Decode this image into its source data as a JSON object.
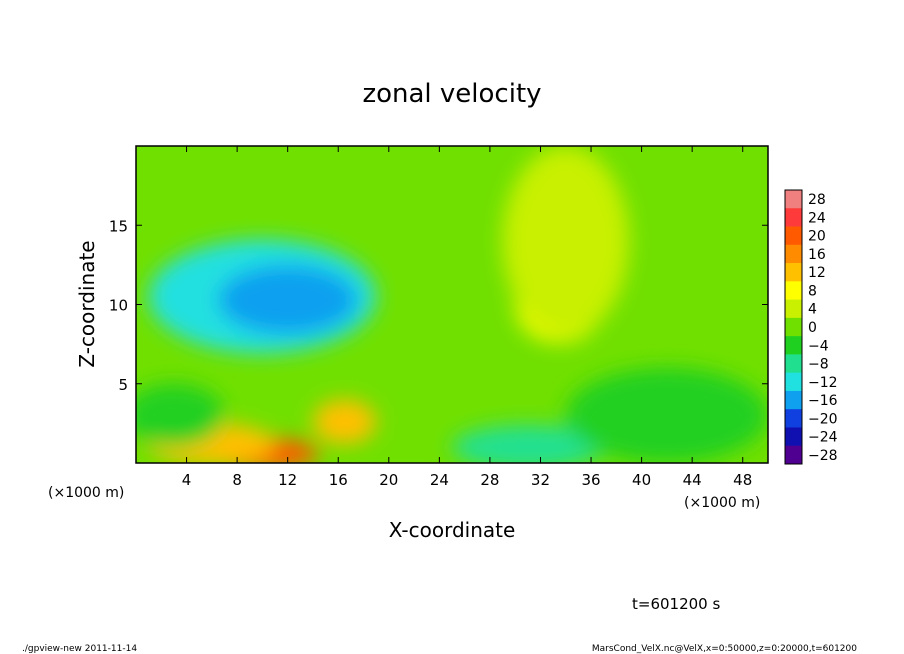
{
  "chart_data": {
    "type": "heatmap",
    "title": "zonal velocity",
    "xlabel": "X-coordinate",
    "ylabel": "Z-coordinate",
    "x_unit_left": "(×1000 m)",
    "x_unit_right": "(×1000 m)",
    "xlim": [
      0,
      50
    ],
    "ylim": [
      0,
      20
    ],
    "x_ticks": [
      4,
      8,
      12,
      16,
      20,
      24,
      28,
      32,
      36,
      40,
      44,
      48
    ],
    "x_tick_labels": [
      "4",
      "8",
      "12",
      "16",
      "20",
      "24",
      "28",
      "32",
      "36",
      "40",
      "44",
      "48"
    ],
    "y_ticks": [
      5,
      10,
      15
    ],
    "y_tick_labels": [
      "5",
      "10",
      "15"
    ],
    "colorbar": {
      "levels": [
        28,
        24,
        20,
        16,
        12,
        8,
        4,
        0,
        -4,
        -8,
        -12,
        -16,
        -20,
        -24,
        -28
      ],
      "labels": [
        "28",
        "24",
        "20",
        "16",
        "12",
        "8",
        "4",
        "0",
        "−4",
        "−8",
        "−12",
        "−16",
        "−20",
        "−24",
        "−28"
      ],
      "colors": [
        "#f08080",
        "#ff3a3a",
        "#ff5a00",
        "#ff8c00",
        "#ffc000",
        "#ffff00",
        "#c8f000",
        "#70e000",
        "#20d020",
        "#20e090",
        "#20e0e0",
        "#10a0f0",
        "#1040e0",
        "#1010b0",
        "#500090"
      ]
    },
    "background_value": 0,
    "features": [
      {
        "value": -12,
        "x": 10,
        "z": 10.5,
        "rx": 9,
        "rz": 3.6
      },
      {
        "value": -16,
        "x": 12,
        "z": 10.3,
        "rx": 5.5,
        "rz": 2.2
      },
      {
        "value": 8,
        "x": 33.5,
        "z": 10,
        "rx": 3.5,
        "rz": 2.4
      },
      {
        "value": 4,
        "x": 34,
        "z": 14,
        "rx": 5,
        "rz": 6
      },
      {
        "value": 20,
        "x": 10,
        "z": 0.6,
        "rx": 4.5,
        "rz": 1
      },
      {
        "value": 12,
        "x": 6,
        "z": 1.2,
        "rx": 5,
        "rz": 1.3
      },
      {
        "value": 12,
        "x": 16.5,
        "z": 2.6,
        "rx": 2.5,
        "rz": 1.4
      },
      {
        "value": -8,
        "x": 31,
        "z": 1,
        "rx": 6,
        "rz": 1.4
      },
      {
        "value": -4,
        "x": 3,
        "z": 3,
        "rx": 4,
        "rz": 2
      },
      {
        "value": -4,
        "x": 42,
        "z": 3,
        "rx": 8,
        "rz": 3
      }
    ]
  },
  "footer": {
    "time_label": "t=601200 s",
    "program": "./gpview-new  2011-11-14",
    "source": "MarsCond_VelX.nc@VelX,x=0:50000,z=0:20000,t=601200"
  }
}
